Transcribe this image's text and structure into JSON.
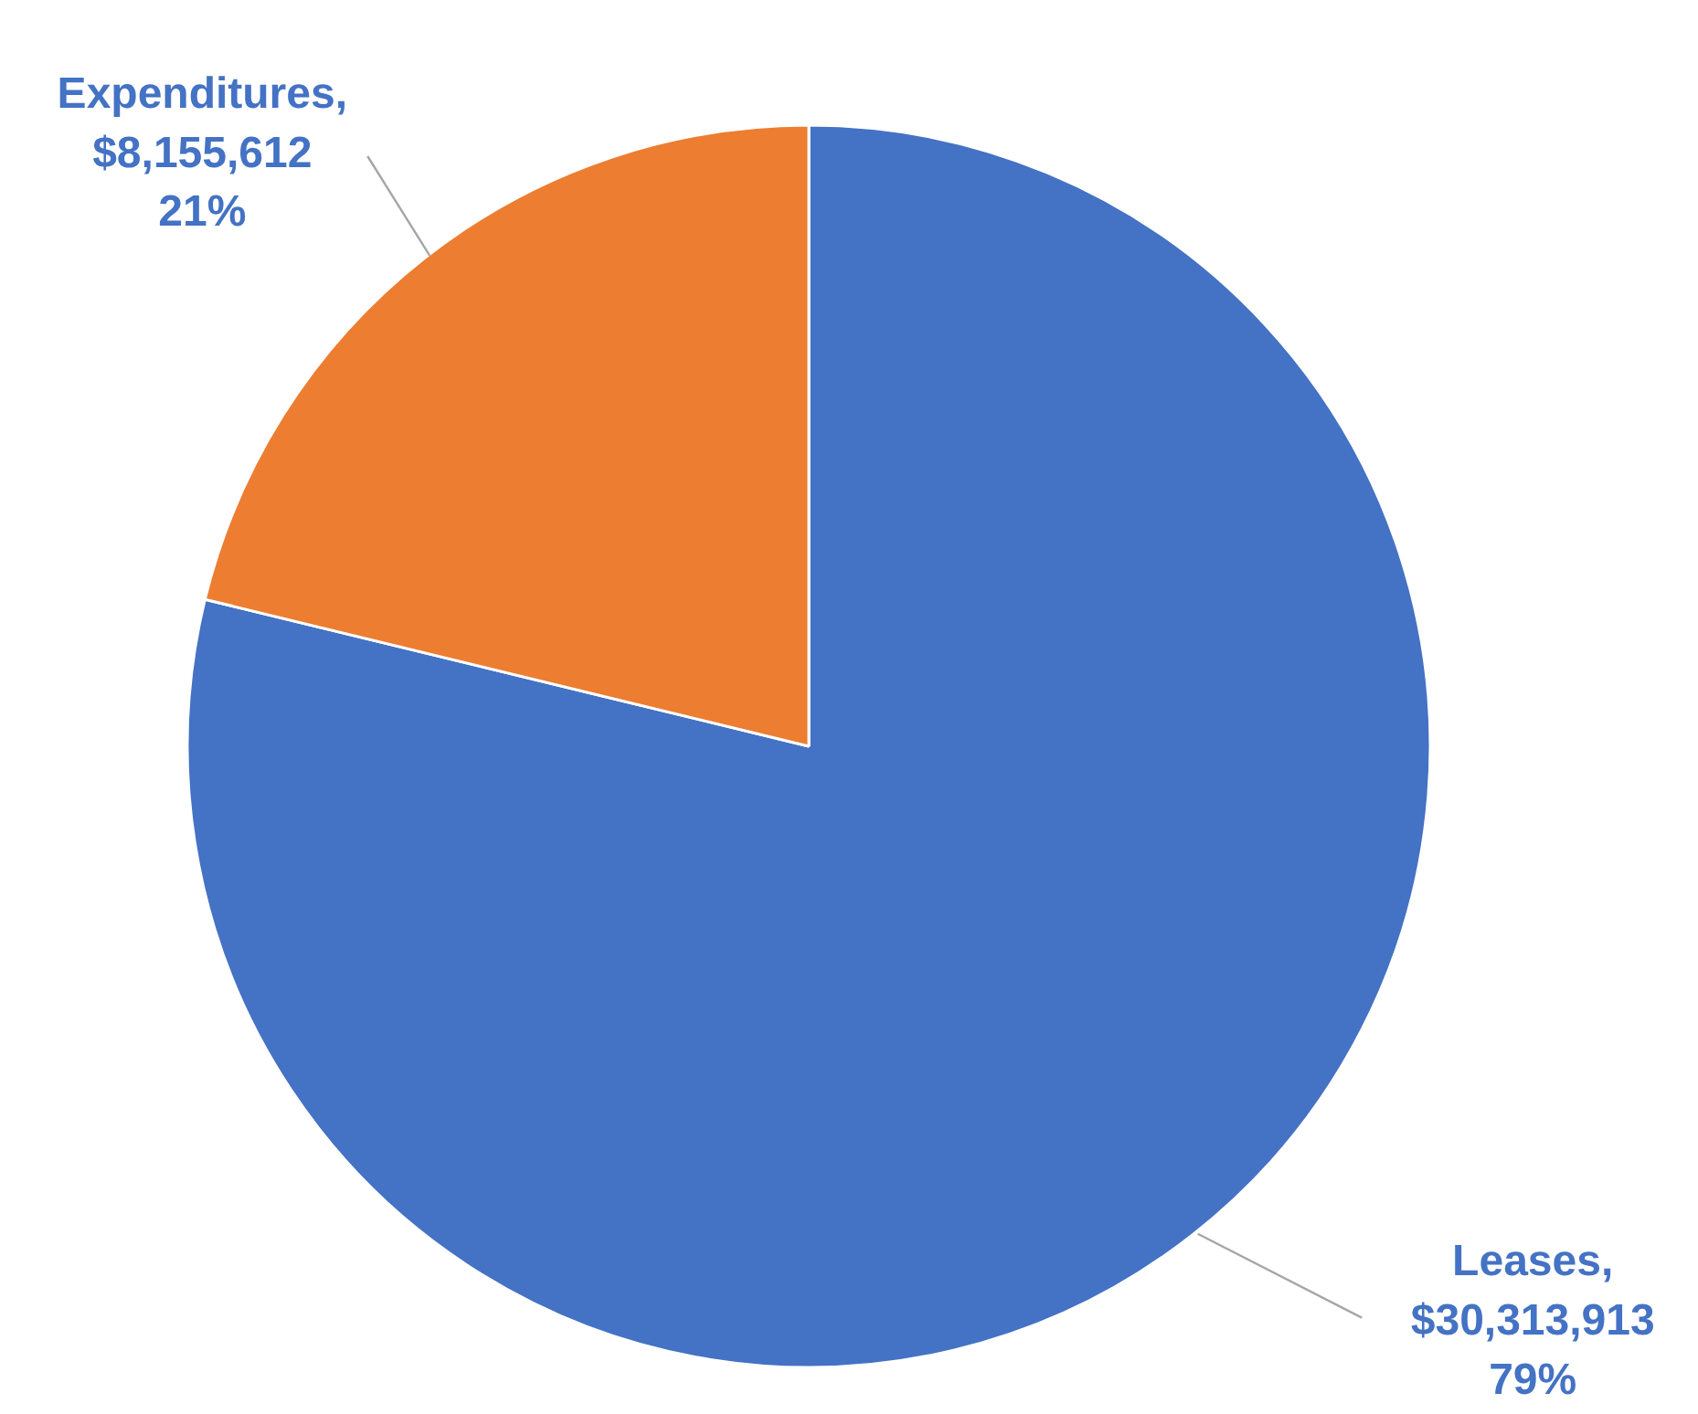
{
  "chart_data": {
    "type": "pie",
    "categories": [
      "Leases",
      "Expenditures"
    ],
    "values": [
      30313913,
      8155612
    ],
    "colors": [
      "#4472c4",
      "#ed7d31"
    ],
    "value_labels": [
      ",\n$30,313,913\n79%",
      ",\n$8,155,612\n21%"
    ]
  }
}
